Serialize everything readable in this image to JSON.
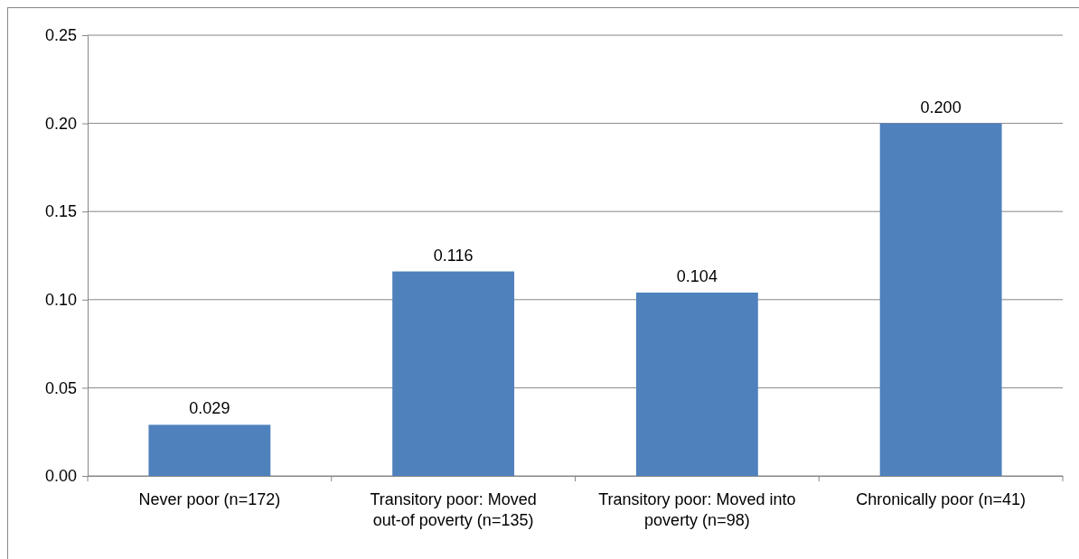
{
  "chart_data": {
    "type": "bar",
    "categories": [
      "Never poor (n=172)",
      "Transitory poor: Moved out-of poverty (n=135)",
      "Transitory poor: Moved into poverty (n=98)",
      "Chronically poor (n=41)"
    ],
    "values": [
      0.029,
      0.116,
      0.104,
      0.2
    ],
    "value_labels": [
      "0.029",
      "0.116",
      "0.104",
      "0.200"
    ],
    "color": "#4f81bd",
    "ylim": [
      0,
      0.25
    ],
    "yticks": [
      {
        "value": 0,
        "label": "0.00"
      },
      {
        "value": 0.05,
        "label": "0.05"
      },
      {
        "value": 0.1,
        "label": "0.10"
      },
      {
        "value": 0.15,
        "label": "0.15"
      },
      {
        "value": 0.2,
        "label": "0.20"
      },
      {
        "value": 0.25,
        "label": "0.25"
      }
    ],
    "grid": "y"
  }
}
